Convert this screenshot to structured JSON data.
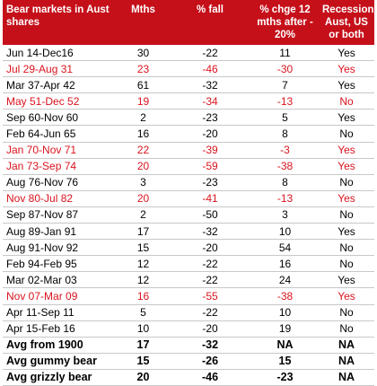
{
  "headers": {
    "col1": "Bear markets in Aust shares",
    "col2": "Mths",
    "col3": "% fall",
    "col4": "% chge 12 mths after - 20%",
    "col5": "Recession Aust, US or both"
  },
  "rows": [
    {
      "period": "Jun 14-Dec16",
      "mths": "30",
      "fall": "-22",
      "chge": "11",
      "recession": "Yes",
      "red": false
    },
    {
      "period": "Jul 29-Aug 31",
      "mths": "23",
      "fall": "-46",
      "chge": "-30",
      "recession": "Yes",
      "red": true
    },
    {
      "period": "Mar 37-Apr 42",
      "mths": "61",
      "fall": "-32",
      "chge": "7",
      "recession": "Yes",
      "red": false
    },
    {
      "period": "May 51-Dec 52",
      "mths": "19",
      "fall": "-34",
      "chge": "-13",
      "recession": "No",
      "red": true
    },
    {
      "period": "Sep 60-Nov 60",
      "mths": "2",
      "fall": "-23",
      "chge": "5",
      "recession": "Yes",
      "red": false
    },
    {
      "period": "Feb 64-Jun 65",
      "mths": "16",
      "fall": "-20",
      "chge": "8",
      "recession": "No",
      "red": false
    },
    {
      "period": "Jan 70-Nov 71",
      "mths": "22",
      "fall": "-39",
      "chge": "-3",
      "recession": "Yes",
      "red": true
    },
    {
      "period": "Jan 73-Sep 74",
      "mths": "20",
      "fall": "-59",
      "chge": "-38",
      "recession": "Yes",
      "red": true
    },
    {
      "period": "Aug 76-Nov 76",
      "mths": "3",
      "fall": "-23",
      "chge": "8",
      "recession": "No",
      "red": false
    },
    {
      "period": "Nov 80-Jul 82",
      "mths": "20",
      "fall": "-41",
      "chge": "-13",
      "recession": "Yes",
      "red": true
    },
    {
      "period": "Sep 87-Nov 87",
      "mths": "2",
      "fall": "-50",
      "chge": "3",
      "recession": "No",
      "red": false
    },
    {
      "period": "Aug 89-Jan 91",
      "mths": "17",
      "fall": "-32",
      "chge": "10",
      "recession": "Yes",
      "red": false
    },
    {
      "period": "Aug 91-Nov 92",
      "mths": "15",
      "fall": "-20",
      "chge": "54",
      "recession": "No",
      "red": false
    },
    {
      "period": "Feb 94-Feb 95",
      "mths": "12",
      "fall": "-22",
      "chge": "16",
      "recession": "No",
      "red": false
    },
    {
      "period": "Mar 02-Mar 03",
      "mths": "12",
      "fall": "-22",
      "chge": "24",
      "recession": "Yes",
      "red": false
    },
    {
      "period": "Nov 07-Mar 09",
      "mths": "16",
      "fall": "-55",
      "chge": "-38",
      "recession": "Yes",
      "red": true
    },
    {
      "period": "Apr 11-Sep 11",
      "mths": "5",
      "fall": "-22",
      "chge": "10",
      "recession": "No",
      "red": false
    },
    {
      "period": "Apr 15-Feb 16",
      "mths": "10",
      "fall": "-20",
      "chge": "19",
      "recession": "No",
      "red": false
    }
  ],
  "summary": [
    {
      "period": "Avg from 1900",
      "mths": "17",
      "fall": "-32",
      "chge": "NA",
      "recession": "NA"
    },
    {
      "period": "Avg gummy bear",
      "mths": "15",
      "fall": "-26",
      "chge": "15",
      "recession": "NA"
    },
    {
      "period": "Avg grizzly bear",
      "mths": "20",
      "fall": "-46",
      "chge": "-23",
      "recession": "NA"
    }
  ],
  "colors": {
    "header_bg": "#c5101a",
    "header_text": "#ffffff",
    "highlight_text": "#d9141e"
  }
}
